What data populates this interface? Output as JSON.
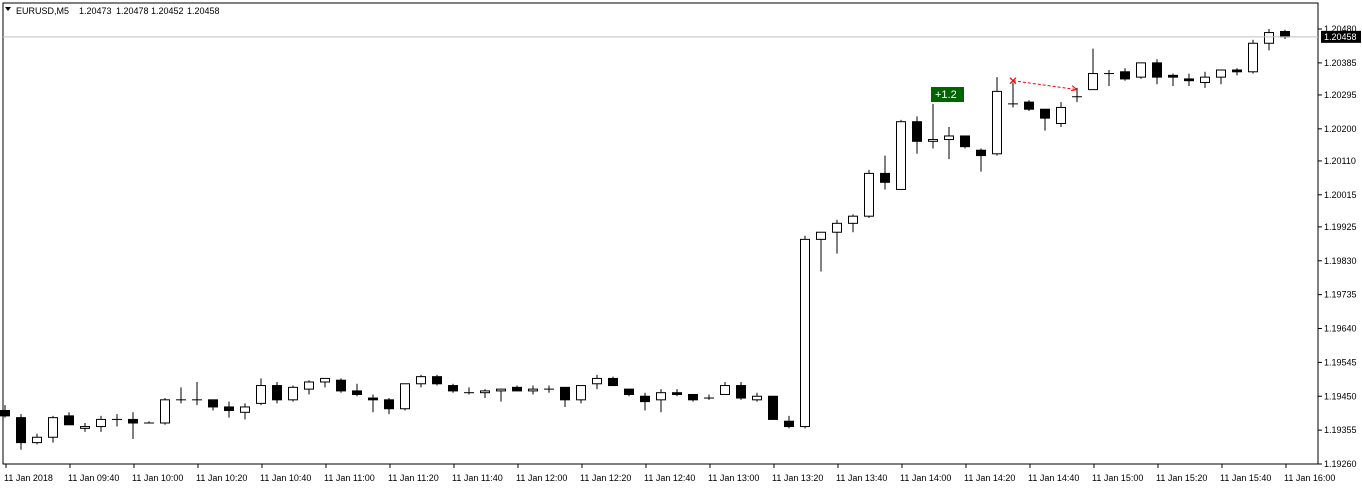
{
  "header": {
    "symbol": "EURUSD,M5",
    "open": "1.20473",
    "high": "1.20478",
    "low": "1.20452",
    "close": "1.20458"
  },
  "price_label": {
    "value": "1.20458",
    "bg_color": "#000000",
    "text_color": "#ffffff"
  },
  "trade_badge": {
    "text": "+1.2",
    "bg_color": "#006400",
    "text_color": "#ffffff"
  },
  "colors": {
    "background": "#ffffff",
    "foreground": "#000000",
    "bull_body": "#ffffff",
    "bear_body": "#000000",
    "trade_line": "#ff0000",
    "price_line": "#c0c0c0"
  },
  "chart_data": {
    "type": "candlestick",
    "symbol": "EURUSD",
    "timeframe": "M5",
    "ylim": [
      1.19265,
      1.20485
    ],
    "y_ticks": [
      "1.20480",
      "1.20385",
      "1.20295",
      "1.20200",
      "1.20110",
      "1.20015",
      "1.19925",
      "1.19830",
      "1.19735",
      "1.19640",
      "1.19545",
      "1.19450",
      "1.19355",
      "1.19260"
    ],
    "x_tick_labels": [
      "11 Jan 2018",
      "11 Jan 09:40",
      "11 Jan 10:00",
      "11 Jan 10:20",
      "11 Jan 10:40",
      "11 Jan 11:00",
      "11 Jan 11:20",
      "11 Jan 11:40",
      "11 Jan 12:00",
      "11 Jan 12:20",
      "11 Jan 12:40",
      "11 Jan 13:00",
      "11 Jan 13:20",
      "11 Jan 13:40",
      "11 Jan 14:00",
      "11 Jan 14:20",
      "11 Jan 14:40",
      "11 Jan 15:00",
      "11 Jan 15:20",
      "11 Jan 15:40",
      "11 Jan 16:00"
    ],
    "candles": [
      [
        1.1941,
        1.19425,
        1.1939,
        1.19395
      ],
      [
        1.1939,
        1.194,
        1.193,
        1.1932
      ],
      [
        1.1932,
        1.19345,
        1.19315,
        1.19335
      ],
      [
        1.19335,
        1.19395,
        1.1932,
        1.1939
      ],
      [
        1.19395,
        1.19405,
        1.1937,
        1.1937
      ],
      [
        1.1936,
        1.19375,
        1.1935,
        1.19365
      ],
      [
        1.19365,
        1.19395,
        1.1935,
        1.19385
      ],
      [
        1.19385,
        1.194,
        1.19365,
        1.19385
      ],
      [
        1.19385,
        1.19405,
        1.1933,
        1.19375
      ],
      [
        1.19375,
        1.1938,
        1.19375,
        1.19375
      ],
      [
        1.19375,
        1.19445,
        1.1937,
        1.1944
      ],
      [
        1.1944,
        1.19475,
        1.1943,
        1.1944
      ],
      [
        1.1944,
        1.1949,
        1.19425,
        1.1944
      ],
      [
        1.1944,
        1.1944,
        1.1941,
        1.1942
      ],
      [
        1.1942,
        1.19435,
        1.1939,
        1.1941
      ],
      [
        1.19405,
        1.1943,
        1.19385,
        1.1942
      ],
      [
        1.1943,
        1.195,
        1.19425,
        1.1948
      ],
      [
        1.1948,
        1.1949,
        1.1943,
        1.1944
      ],
      [
        1.1944,
        1.1948,
        1.19435,
        1.19475
      ],
      [
        1.1947,
        1.19495,
        1.19455,
        1.1949
      ],
      [
        1.1949,
        1.195,
        1.19475,
        1.195
      ],
      [
        1.19495,
        1.195,
        1.1946,
        1.19465
      ],
      [
        1.19465,
        1.19485,
        1.1945,
        1.19455
      ],
      [
        1.19445,
        1.19455,
        1.19405,
        1.1944
      ],
      [
        1.1944,
        1.19445,
        1.194,
        1.19415
      ],
      [
        1.19415,
        1.19485,
        1.1941,
        1.19485
      ],
      [
        1.19485,
        1.1951,
        1.19475,
        1.19505
      ],
      [
        1.19505,
        1.1951,
        1.1948,
        1.19485
      ],
      [
        1.1948,
        1.19485,
        1.1946,
        1.19465
      ],
      [
        1.1946,
        1.19475,
        1.19455,
        1.1946
      ],
      [
        1.1946,
        1.1947,
        1.19445,
        1.19465
      ],
      [
        1.19465,
        1.1947,
        1.19435,
        1.1947
      ],
      [
        1.19475,
        1.1948,
        1.19465,
        1.19465
      ],
      [
        1.19465,
        1.1948,
        1.19455,
        1.1947
      ],
      [
        1.1947,
        1.1948,
        1.1946,
        1.1947
      ],
      [
        1.19475,
        1.19475,
        1.1942,
        1.1944
      ],
      [
        1.1944,
        1.1948,
        1.1943,
        1.1948
      ],
      [
        1.19485,
        1.1951,
        1.1947,
        1.195
      ],
      [
        1.195,
        1.19505,
        1.1948,
        1.1948
      ],
      [
        1.1947,
        1.1947,
        1.1945,
        1.19455
      ],
      [
        1.1945,
        1.1946,
        1.1941,
        1.19435
      ],
      [
        1.1944,
        1.1947,
        1.19405,
        1.1946
      ],
      [
        1.1946,
        1.1947,
        1.1945,
        1.19455
      ],
      [
        1.19455,
        1.19455,
        1.19435,
        1.1944
      ],
      [
        1.19445,
        1.19455,
        1.1944,
        1.19445
      ],
      [
        1.19455,
        1.1949,
        1.19455,
        1.1948
      ],
      [
        1.1948,
        1.1949,
        1.1944,
        1.19445
      ],
      [
        1.1944,
        1.1946,
        1.19435,
        1.1945
      ],
      [
        1.1945,
        1.1945,
        1.19385,
        1.19385
      ],
      [
        1.1938,
        1.19395,
        1.1936,
        1.19365
      ],
      [
        1.19365,
        1.199,
        1.1936,
        1.1989
      ],
      [
        1.1989,
        1.1991,
        1.198,
        1.1991
      ],
      [
        1.1991,
        1.19945,
        1.1985,
        1.19935
      ],
      [
        1.19935,
        1.1996,
        1.1991,
        1.19955
      ],
      [
        1.19955,
        1.20085,
        1.1995,
        1.20075
      ],
      [
        1.20075,
        1.20125,
        1.2003,
        1.2005
      ],
      [
        1.2003,
        1.20225,
        1.2003,
        1.2022
      ],
      [
        1.2022,
        1.20235,
        1.2013,
        1.20165
      ],
      [
        1.20165,
        1.2027,
        1.20145,
        1.2017
      ],
      [
        1.2017,
        1.20205,
        1.20115,
        1.2018
      ],
      [
        1.2018,
        1.2018,
        1.20145,
        1.2015
      ],
      [
        1.2014,
        1.20145,
        1.2008,
        1.20125
      ],
      [
        1.2013,
        1.20345,
        1.20125,
        1.20305
      ],
      [
        1.2027,
        1.2033,
        1.2026,
        1.2027
      ],
      [
        1.20275,
        1.2028,
        1.2025,
        1.20255
      ],
      [
        1.20255,
        1.20255,
        1.20195,
        1.2023
      ],
      [
        1.20215,
        1.20275,
        1.20205,
        1.2026
      ],
      [
        1.2029,
        1.20315,
        1.20275,
        1.2029
      ],
      [
        1.2031,
        1.20425,
        1.2031,
        1.20355
      ],
      [
        1.20355,
        1.20365,
        1.2032,
        1.20355
      ],
      [
        1.2036,
        1.2037,
        1.20335,
        1.2034
      ],
      [
        1.20345,
        1.20385,
        1.2034,
        1.20385
      ],
      [
        1.20385,
        1.20395,
        1.20325,
        1.20345
      ],
      [
        1.2035,
        1.20355,
        1.2032,
        1.20345
      ],
      [
        1.2034,
        1.20355,
        1.2032,
        1.20335
      ],
      [
        1.2033,
        1.2036,
        1.20315,
        1.20345
      ],
      [
        1.20345,
        1.2036,
        1.20325,
        1.20365
      ],
      [
        1.20365,
        1.2037,
        1.2035,
        1.2036
      ],
      [
        1.2036,
        1.2045,
        1.20355,
        1.2044
      ],
      [
        1.2044,
        1.2048,
        1.2042,
        1.2047
      ],
      [
        1.20473,
        1.20478,
        1.20452,
        1.20458
      ]
    ]
  }
}
